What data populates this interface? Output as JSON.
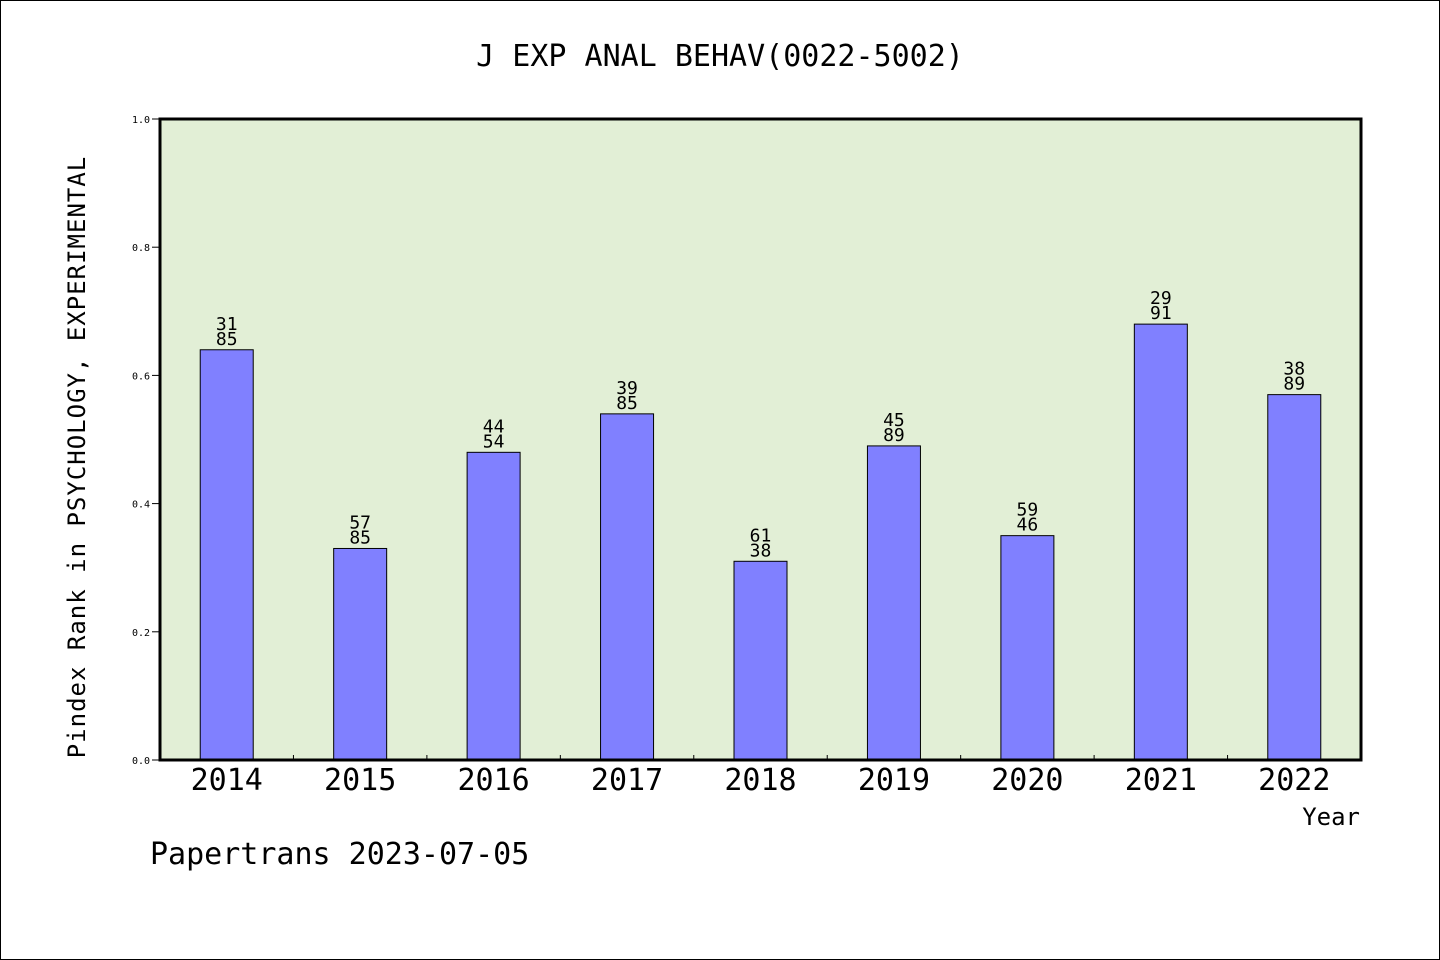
{
  "chart_data": {
    "type": "bar",
    "title": "J EXP ANAL BEHAV(0022-5002)",
    "xlabel": "Year",
    "ylabel": "Pindex Rank in PSYCHOLOGY, EXPERIMENTAL",
    "ylim": [
      0,
      1.0
    ],
    "yticks": [
      "0.0",
      "0.2",
      "0.4",
      "0.6",
      "0.8",
      "1.0"
    ],
    "categories": [
      "2014",
      "2015",
      "2016",
      "2017",
      "2018",
      "2019",
      "2020",
      "2021",
      "2022"
    ],
    "values": [
      0.64,
      0.33,
      0.48,
      0.54,
      0.31,
      0.49,
      0.35,
      0.68,
      0.57
    ],
    "labels_top": [
      "31",
      "57",
      "44",
      "39",
      "61",
      "45",
      "59",
      "29",
      "38"
    ],
    "labels_bottom": [
      "85",
      "85",
      "54",
      "85",
      "38",
      "89",
      "46",
      "91",
      "89"
    ],
    "bar_color": "#8080ff",
    "plot_background": "#e2efd6",
    "grid": false
  },
  "footer": {
    "text": "Papertrans 2023-07-05"
  }
}
